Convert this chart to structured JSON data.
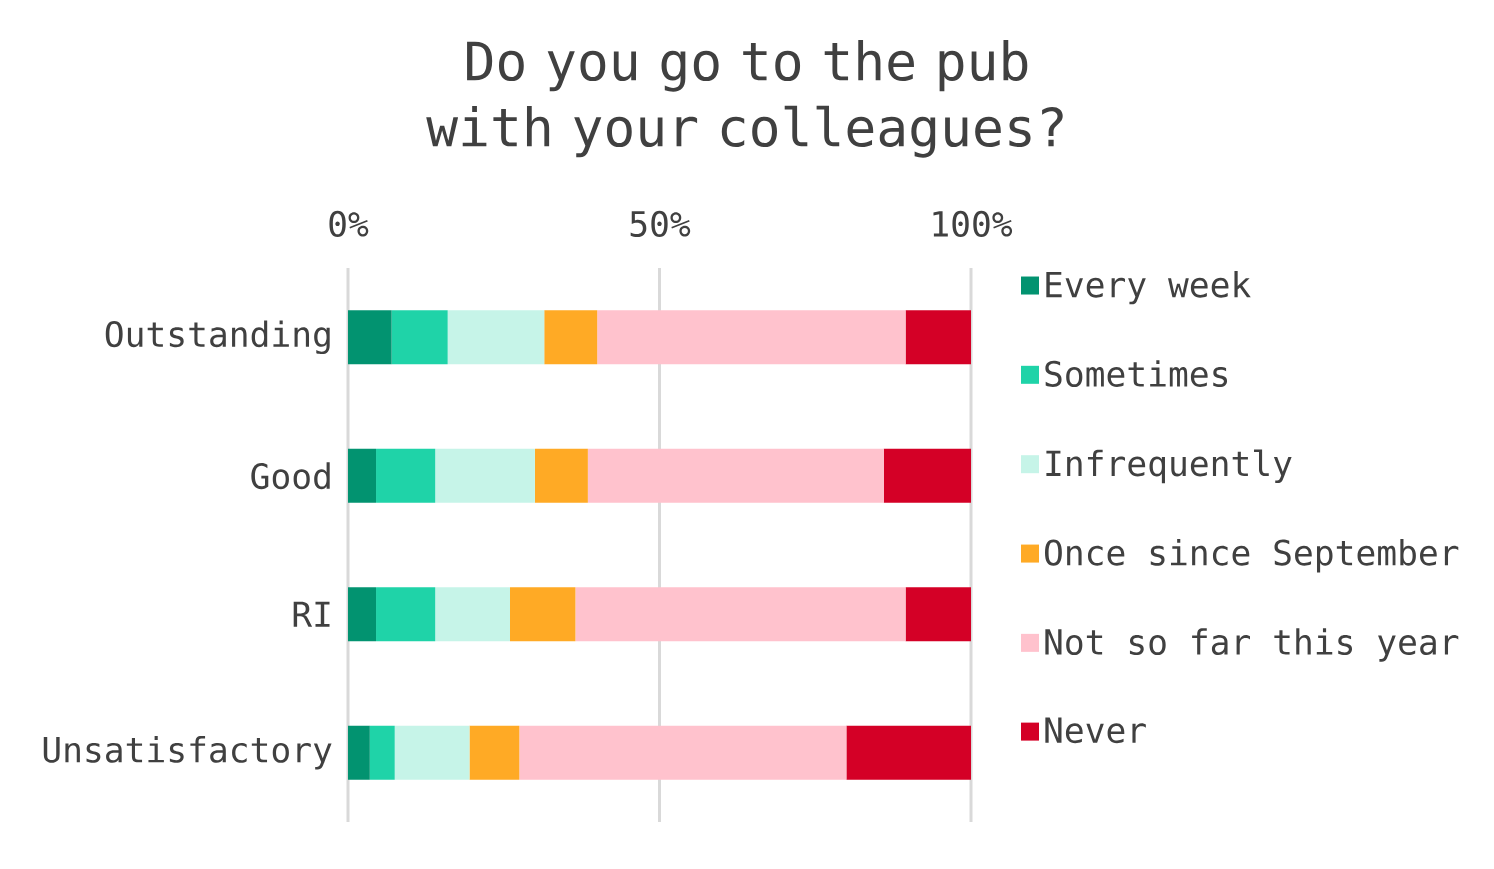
{
  "chart_data": {
    "type": "bar",
    "orientation": "horizontal",
    "stacked": true,
    "title": "Do you go to the pub with your colleagues?",
    "categories": [
      "Outstanding",
      "Good",
      "RI",
      "Unsatisfactory"
    ],
    "xlim": [
      0,
      100
    ],
    "xticks": [
      {
        "value": 0,
        "label": "0%"
      },
      {
        "value": 50,
        "label": "50%"
      },
      {
        "value": 100,
        "label": "100%"
      }
    ],
    "grid": "x",
    "legend": "right",
    "series": [
      {
        "name": "Every week",
        "color": "#029370",
        "values": [
          7,
          4.5,
          4.5,
          3.5
        ]
      },
      {
        "name": "Sometimes",
        "color": "#1fd3a8",
        "values": [
          9,
          9.5,
          9.5,
          4
        ]
      },
      {
        "name": "Infrequently",
        "color": "#c6f4e8",
        "values": [
          15.5,
          16,
          12,
          12
        ]
      },
      {
        "name": "Once since September",
        "color": "#ffaa25",
        "values": [
          8.5,
          8.5,
          10.5,
          8
        ]
      },
      {
        "name": "Not so far this year",
        "color": "#ffc2cd",
        "values": [
          49.5,
          47.5,
          53,
          52.5
        ]
      },
      {
        "name": "Never",
        "color": "#d40026",
        "values": [
          10.5,
          14,
          10.5,
          20
        ]
      }
    ]
  }
}
